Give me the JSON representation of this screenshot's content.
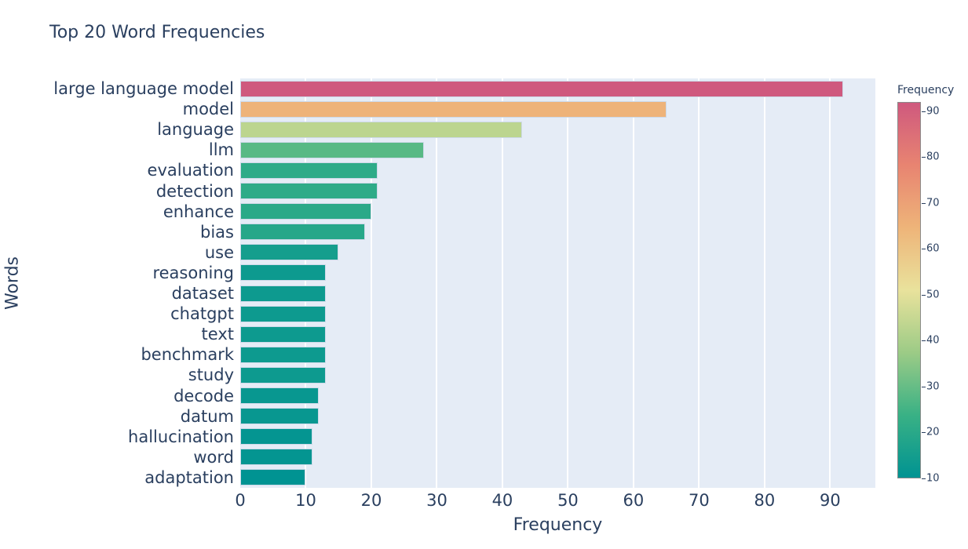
{
  "chart_data": {
    "type": "bar",
    "orientation": "horizontal",
    "title": "Top 20 Word Frequencies",
    "xlabel": "Frequency",
    "ylabel": "Words",
    "categories": [
      "large language model",
      "model",
      "language",
      "llm",
      "evaluation",
      "detection",
      "enhance",
      "bias",
      "use",
      "reasoning",
      "dataset",
      "chatgpt",
      "text",
      "benchmark",
      "study",
      "decode",
      "datum",
      "hallucination",
      "word",
      "adaptation"
    ],
    "values": [
      92,
      65,
      43,
      28,
      21,
      21,
      20,
      19,
      15,
      13,
      13,
      13,
      13,
      13,
      13,
      12,
      12,
      11,
      11,
      10
    ],
    "xticks": [
      0,
      10,
      20,
      30,
      40,
      50,
      60,
      70,
      80,
      90
    ],
    "xlim": [
      0,
      96.9
    ],
    "grid": true,
    "colorscale": [
      "#009392",
      "#39b185",
      "#9ccb86",
      "#e9e29c",
      "#eeb479",
      "#e88471",
      "#cf597e"
    ],
    "colorbar": {
      "title": "Frequency",
      "ticks": [
        10,
        20,
        30,
        40,
        50,
        60,
        70,
        80,
        90
      ],
      "domain": [
        10,
        92
      ],
      "position": "right"
    }
  },
  "colors": {
    "text": "#2a3f5f",
    "plot_bg": "#e5ecf6",
    "grid": "#ffffff",
    "page_bg": "#ffffff",
    "bar_outline": "#cdd9e8"
  }
}
